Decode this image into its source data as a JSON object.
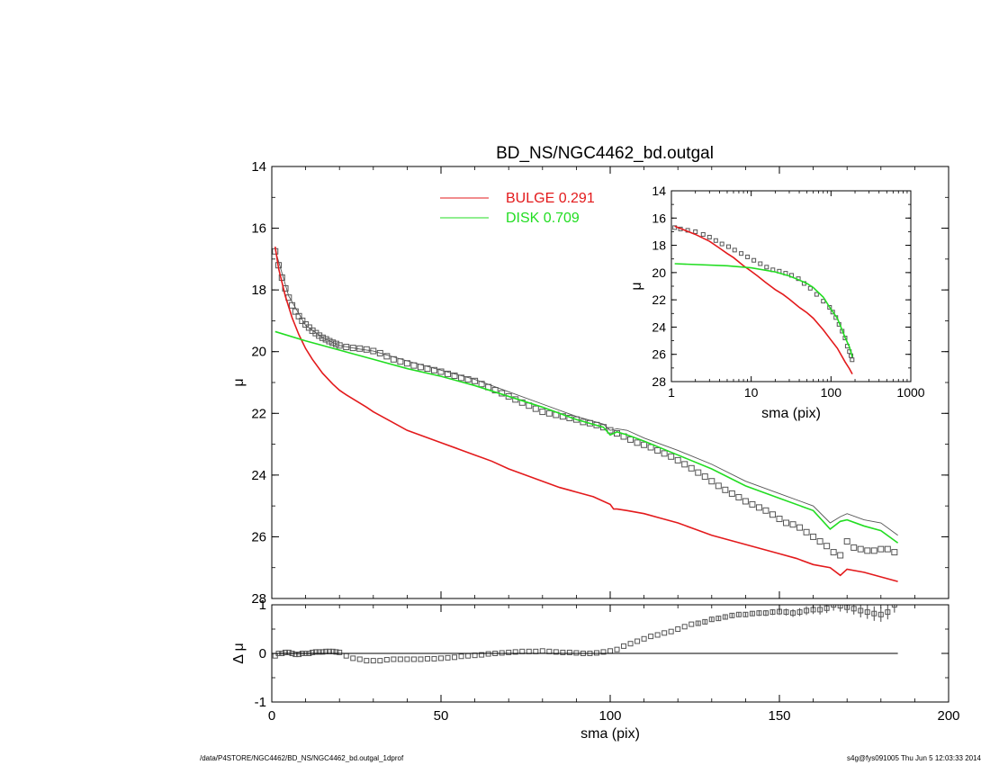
{
  "chart_data": [
    {
      "id": "main",
      "type": "scatter",
      "title": "BD_NS/NGC4462_bd.outgal",
      "xlabel": "",
      "ylabel": "μ",
      "xlim": [
        0,
        200
      ],
      "ylim": [
        28,
        14
      ],
      "xticks": [
        "0",
        "50",
        "100",
        "150",
        "200"
      ],
      "yticks": [
        "14",
        "16",
        "18",
        "20",
        "22",
        "24",
        "26",
        "28"
      ],
      "legend": {
        "placement": "top-center",
        "entries": [
          {
            "name": "BULGE",
            "value": "0.291",
            "color": "#e31a1c"
          },
          {
            "name": "DISK",
            "value": "0.709",
            "color": "#22dd22"
          }
        ]
      },
      "series": [
        {
          "name": "data",
          "style": "open-squares",
          "color": "#555555",
          "x": [
            1,
            2,
            3,
            4,
            5,
            6,
            7,
            8,
            9,
            10,
            11,
            12,
            13,
            14,
            15,
            16,
            17,
            18,
            19,
            20,
            22,
            24,
            26,
            28,
            30,
            32,
            34,
            36,
            38,
            40,
            42,
            44,
            46,
            48,
            50,
            52,
            54,
            56,
            58,
            60,
            62,
            64,
            66,
            68,
            70,
            72,
            74,
            76,
            78,
            80,
            82,
            84,
            86,
            88,
            90,
            92,
            94,
            96,
            98,
            100,
            102,
            104,
            106,
            108,
            110,
            112,
            114,
            116,
            118,
            120,
            122,
            124,
            126,
            128,
            130,
            132,
            134,
            136,
            138,
            140,
            142,
            144,
            146,
            148,
            150,
            152,
            154,
            156,
            158,
            160,
            162,
            164,
            166,
            168,
            170,
            172,
            174,
            176,
            178,
            180,
            182,
            184
          ],
          "y": [
            16.75,
            17.2,
            17.6,
            17.95,
            18.25,
            18.5,
            18.7,
            18.85,
            19.0,
            19.12,
            19.22,
            19.32,
            19.4,
            19.48,
            19.55,
            19.6,
            19.66,
            19.71,
            19.75,
            19.8,
            19.85,
            19.88,
            19.9,
            19.93,
            19.98,
            20.05,
            20.15,
            20.25,
            20.32,
            20.38,
            20.45,
            20.5,
            20.55,
            20.6,
            20.65,
            20.72,
            20.78,
            20.85,
            20.9,
            20.95,
            21.05,
            21.15,
            21.25,
            21.35,
            21.45,
            21.55,
            21.65,
            21.75,
            21.85,
            21.95,
            22.0,
            22.05,
            22.1,
            22.15,
            22.2,
            22.28,
            22.32,
            22.38,
            22.45,
            22.55,
            22.65,
            22.75,
            22.85,
            22.95,
            23.02,
            23.1,
            23.2,
            23.3,
            23.4,
            23.52,
            23.65,
            23.78,
            23.92,
            24.05,
            24.2,
            24.35,
            24.48,
            24.6,
            24.72,
            24.85,
            24.95,
            25.05,
            25.15,
            25.28,
            25.42,
            25.55,
            25.6,
            25.7,
            25.85,
            26.0,
            26.15,
            26.3,
            26.5,
            26.6,
            26.15,
            26.35,
            26.4,
            26.45,
            26.45,
            26.4,
            26.4,
            26.5
          ]
        },
        {
          "name": "model",
          "style": "line",
          "color": "#555555",
          "x": [
            1,
            5,
            10,
            15,
            20,
            25,
            30,
            40,
            50,
            60,
            70,
            80,
            90,
            98,
            100,
            102,
            105,
            110,
            120,
            130,
            140,
            150,
            160,
            165,
            168,
            170,
            175,
            180,
            185
          ],
          "y": [
            16.7,
            18.2,
            19.15,
            19.55,
            19.8,
            19.9,
            19.98,
            20.3,
            20.6,
            20.9,
            21.3,
            21.7,
            22.1,
            22.35,
            22.55,
            22.5,
            22.55,
            22.8,
            23.2,
            23.65,
            24.2,
            24.6,
            25.0,
            25.55,
            25.35,
            25.25,
            25.45,
            25.55,
            25.95
          ]
        },
        {
          "name": "BULGE",
          "style": "line",
          "color": "#e31a1c",
          "x": [
            1,
            2,
            4,
            6,
            8,
            10,
            12,
            15,
            18,
            20,
            22,
            25,
            28,
            30,
            35,
            40,
            45,
            50,
            55,
            60,
            65,
            70,
            75,
            80,
            85,
            90,
            95,
            100,
            101,
            102,
            105,
            110,
            115,
            120,
            125,
            130,
            135,
            140,
            145,
            150,
            155,
            160,
            165,
            168,
            170,
            175,
            180,
            185
          ],
          "y": [
            16.6,
            17.3,
            18.2,
            18.9,
            19.45,
            19.9,
            20.25,
            20.7,
            21.05,
            21.25,
            21.4,
            21.6,
            21.8,
            21.95,
            22.25,
            22.55,
            22.75,
            22.95,
            23.15,
            23.35,
            23.55,
            23.8,
            24.0,
            24.2,
            24.4,
            24.55,
            24.7,
            24.95,
            25.1,
            25.1,
            25.15,
            25.25,
            25.4,
            25.55,
            25.75,
            25.95,
            26.1,
            26.25,
            26.4,
            26.55,
            26.7,
            26.9,
            27.0,
            27.25,
            27.05,
            27.15,
            27.3,
            27.45
          ]
        },
        {
          "name": "DISK",
          "style": "line",
          "color": "#22dd22",
          "x": [
            1,
            10,
            20,
            30,
            40,
            50,
            60,
            70,
            80,
            90,
            98,
            100,
            102,
            105,
            110,
            120,
            130,
            140,
            150,
            160,
            165,
            168,
            170,
            175,
            180,
            185
          ],
          "y": [
            19.35,
            19.65,
            19.95,
            20.25,
            20.55,
            20.8,
            21.1,
            21.45,
            21.8,
            22.2,
            22.45,
            22.7,
            22.6,
            22.7,
            22.9,
            23.35,
            23.8,
            24.35,
            24.75,
            25.15,
            25.75,
            25.5,
            25.45,
            25.65,
            25.8,
            26.2
          ]
        }
      ]
    },
    {
      "id": "residual",
      "type": "scatter",
      "title": "",
      "xlabel": "sma (pix)",
      "ylabel": "Δ μ",
      "xlim": [
        0,
        200
      ],
      "ylim": [
        -1,
        1
      ],
      "xticks": [
        "0",
        "50",
        "100",
        "150",
        "200"
      ],
      "yticks": [
        "-1",
        "0",
        "1"
      ],
      "series": [
        {
          "name": "residual",
          "style": "open-squares",
          "color": "#555555",
          "x": [
            1,
            2,
            3,
            4,
            5,
            6,
            7,
            8,
            9,
            10,
            11,
            12,
            13,
            14,
            15,
            16,
            17,
            18,
            19,
            20,
            22,
            24,
            26,
            28,
            30,
            32,
            34,
            36,
            38,
            40,
            42,
            44,
            46,
            48,
            50,
            52,
            54,
            56,
            58,
            60,
            62,
            64,
            66,
            68,
            70,
            72,
            74,
            76,
            78,
            80,
            82,
            84,
            86,
            88,
            90,
            92,
            94,
            96,
            98,
            100,
            102,
            104,
            106,
            108,
            110,
            112,
            114,
            116,
            118,
            120,
            122,
            124,
            126,
            128,
            130,
            132,
            134,
            136,
            138,
            140,
            142,
            144,
            146,
            148,
            150,
            152,
            154,
            156,
            158,
            160,
            162,
            164,
            166,
            168,
            170,
            172,
            174,
            176,
            178,
            180,
            182,
            184
          ],
          "y": [
            -0.05,
            0.0,
            0.0,
            0.02,
            0.02,
            0.0,
            -0.02,
            -0.02,
            0.0,
            0.0,
            0.0,
            0.02,
            0.03,
            0.03,
            0.03,
            0.04,
            0.04,
            0.04,
            0.03,
            0.02,
            -0.05,
            -0.1,
            -0.12,
            -0.15,
            -0.15,
            -0.15,
            -0.13,
            -0.12,
            -0.12,
            -0.12,
            -0.12,
            -0.12,
            -0.11,
            -0.11,
            -0.1,
            -0.09,
            -0.08,
            -0.06,
            -0.05,
            -0.04,
            -0.03,
            -0.01,
            0.0,
            0.01,
            0.02,
            0.03,
            0.04,
            0.04,
            0.04,
            0.05,
            0.04,
            0.03,
            0.02,
            0.02,
            0.01,
            0.0,
            0.0,
            0.01,
            0.03,
            0.05,
            0.08,
            0.15,
            0.2,
            0.25,
            0.3,
            0.35,
            0.38,
            0.42,
            0.45,
            0.5,
            0.55,
            0.6,
            0.62,
            0.65,
            0.7,
            0.72,
            0.75,
            0.78,
            0.8,
            0.8,
            0.82,
            0.83,
            0.83,
            0.85,
            0.86,
            0.85,
            0.83,
            0.85,
            0.88,
            0.9,
            0.9,
            0.93,
            1.0,
            0.98,
            0.95,
            0.92,
            0.88,
            0.85,
            0.82,
            0.8,
            0.85,
            1.0
          ],
          "yerr": [
            0.02,
            0.02,
            0.02,
            0.02,
            0.02,
            0.02,
            0.02,
            0.02,
            0.02,
            0.02,
            0.02,
            0.02,
            0.02,
            0.02,
            0.02,
            0.02,
            0.02,
            0.02,
            0.02,
            0.02,
            0.02,
            0.02,
            0.02,
            0.02,
            0.02,
            0.02,
            0.02,
            0.02,
            0.02,
            0.02,
            0.02,
            0.02,
            0.02,
            0.02,
            0.02,
            0.02,
            0.02,
            0.02,
            0.02,
            0.02,
            0.02,
            0.02,
            0.02,
            0.02,
            0.02,
            0.02,
            0.02,
            0.02,
            0.02,
            0.02,
            0.02,
            0.02,
            0.02,
            0.02,
            0.02,
            0.02,
            0.02,
            0.02,
            0.02,
            0.02,
            0.03,
            0.03,
            0.03,
            0.03,
            0.03,
            0.03,
            0.03,
            0.03,
            0.03,
            0.03,
            0.03,
            0.03,
            0.04,
            0.04,
            0.04,
            0.04,
            0.04,
            0.05,
            0.05,
            0.05,
            0.05,
            0.06,
            0.06,
            0.06,
            0.07,
            0.07,
            0.08,
            0.08,
            0.09,
            0.09,
            0.1,
            0.1,
            0.12,
            0.12,
            0.12,
            0.12,
            0.14,
            0.14,
            0.15,
            0.15,
            0.15,
            0.16
          ]
        },
        {
          "name": "zero",
          "style": "line",
          "color": "#000000",
          "x": [
            0,
            185
          ],
          "y": [
            0,
            0
          ]
        }
      ]
    },
    {
      "id": "inset",
      "type": "scatter",
      "title": "",
      "xlabel": "sma (pix)",
      "ylabel": "μ",
      "xscale": "log",
      "xlim": [
        1,
        1000
      ],
      "ylim": [
        28,
        14
      ],
      "xticks": [
        "1",
        "10",
        "100",
        "1000"
      ],
      "yticks": [
        "14",
        "16",
        "18",
        "20",
        "22",
        "24",
        "26",
        "28"
      ],
      "series": [
        {
          "name": "data",
          "style": "open-squares",
          "color": "#555555",
          "x": [
            1.1,
            1.3,
            1.6,
            2.0,
            2.5,
            3.0,
            3.6,
            4.3,
            5.2,
            6.2,
            7.5,
            9.0,
            10.8,
            13,
            15.6,
            18.7,
            22.5,
            27,
            32,
            39,
            46,
            55,
            66,
            80,
            96,
            105,
            115,
            126,
            138,
            150,
            160,
            170,
            178,
            184
          ],
          "y": [
            16.7,
            16.8,
            16.9,
            17.0,
            17.2,
            17.4,
            17.65,
            17.9,
            18.1,
            18.35,
            18.6,
            18.85,
            19.1,
            19.35,
            19.6,
            19.8,
            19.9,
            20.05,
            20.2,
            20.45,
            20.8,
            21.15,
            21.6,
            22.1,
            22.55,
            22.9,
            23.3,
            23.8,
            24.3,
            24.8,
            25.4,
            25.8,
            26.1,
            26.4
          ]
        },
        {
          "name": "BULGE",
          "style": "line",
          "color": "#e31a1c",
          "x": [
            1.1,
            2,
            3,
            4,
            5,
            6,
            8,
            10,
            12,
            15,
            18,
            20,
            25,
            30,
            40,
            50,
            60,
            80,
            100,
            120,
            150,
            170,
            185
          ],
          "y": [
            16.6,
            17.2,
            17.7,
            18.2,
            18.6,
            18.9,
            19.5,
            19.9,
            20.25,
            20.7,
            21.05,
            21.25,
            21.6,
            21.95,
            22.55,
            22.95,
            23.35,
            24.2,
            24.95,
            25.55,
            26.55,
            27.05,
            27.45
          ]
        },
        {
          "name": "DISK",
          "style": "line",
          "color": "#22dd22",
          "x": [
            1.1,
            5,
            10,
            20,
            30,
            40,
            50,
            60,
            80,
            100,
            120,
            150,
            170,
            185
          ],
          "y": [
            19.35,
            19.5,
            19.65,
            19.95,
            20.25,
            20.55,
            20.8,
            21.1,
            21.8,
            22.7,
            23.35,
            24.75,
            25.45,
            26.2
          ]
        }
      ]
    }
  ],
  "footer": {
    "left": "/data/P4STORE/NGC4462/BD_NS/NGC4462_bd.outgal_1dprof",
    "right": "s4g@fys091005  Thu Jun  5 12:03:33 2014"
  }
}
